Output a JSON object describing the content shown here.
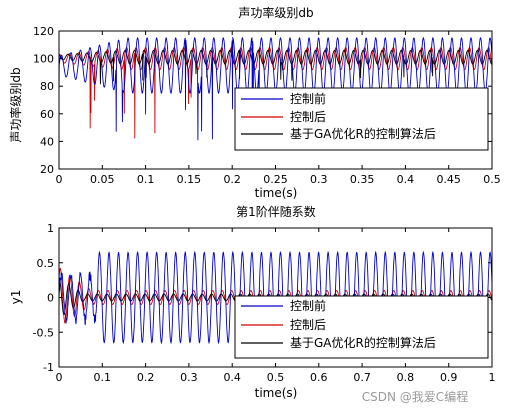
{
  "watermark": "CSDN @我爱C编程",
  "chart_data": [
    {
      "type": "line",
      "title": "声功率级别db",
      "xlabel": "time(s)",
      "ylabel": "声功率级别db",
      "xlim": [
        0,
        0.5
      ],
      "ylim": [
        20,
        120
      ],
      "xticks": [
        0,
        0.05,
        0.1,
        0.15,
        0.2,
        0.25,
        0.3,
        0.35,
        0.4,
        0.45,
        0.5
      ],
      "xtick_labels": [
        "0",
        "0.05",
        "0.1",
        "0.15",
        "0.2",
        "0.25",
        "0.3",
        "0.35",
        "0.4",
        "0.45",
        "0.5"
      ],
      "yticks": [
        20,
        40,
        60,
        80,
        100,
        120
      ],
      "ytick_labels": [
        "20",
        "40",
        "60",
        "80",
        "100",
        "120"
      ],
      "grid": false,
      "legend_position": "bottom-right",
      "series": [
        {
          "name": "控制前",
          "color": "#0000c8",
          "center": 95,
          "amplitude": 20,
          "period": 0.011,
          "min_dip": 40
        },
        {
          "name": "控制后",
          "color": "#d00000",
          "center": 100,
          "amplitude": 8,
          "period": 0.011,
          "min_dip": 42
        },
        {
          "name": "基于GA优化R的控制算法后",
          "color": "#000000",
          "center": 101,
          "amplitude": 5,
          "period": 0.011,
          "min_dip": 80
        }
      ]
    },
    {
      "type": "line",
      "title": "第1阶伴随系数",
      "xlabel": "time(s)",
      "ylabel": "y1",
      "xlim": [
        0,
        1
      ],
      "ylim": [
        -1,
        1
      ],
      "xticks": [
        0,
        0.1,
        0.2,
        0.3,
        0.4,
        0.5,
        0.6,
        0.7,
        0.8,
        0.9,
        1
      ],
      "xtick_labels": [
        "0",
        "0.1",
        "0.2",
        "0.3",
        "0.4",
        "0.5",
        "0.6",
        "0.7",
        "0.8",
        "0.9",
        "1"
      ],
      "yticks": [
        -1,
        -0.5,
        0,
        0.5,
        1
      ],
      "ytick_labels": [
        "-1",
        "-0.5",
        "0",
        "0.5",
        "1"
      ],
      "grid": false,
      "legend_position": "bottom-right",
      "series": [
        {
          "name": "控制前",
          "color": "#0000c8",
          "amplitude": 0.65,
          "period": 0.022
        },
        {
          "name": "控制后",
          "color": "#d00000",
          "amplitude": 0.1,
          "period": 0.022
        },
        {
          "name": "基于GA优化R的控制算法后",
          "color": "#000000",
          "amplitude": 0.05,
          "period": 0.022
        }
      ]
    }
  ]
}
